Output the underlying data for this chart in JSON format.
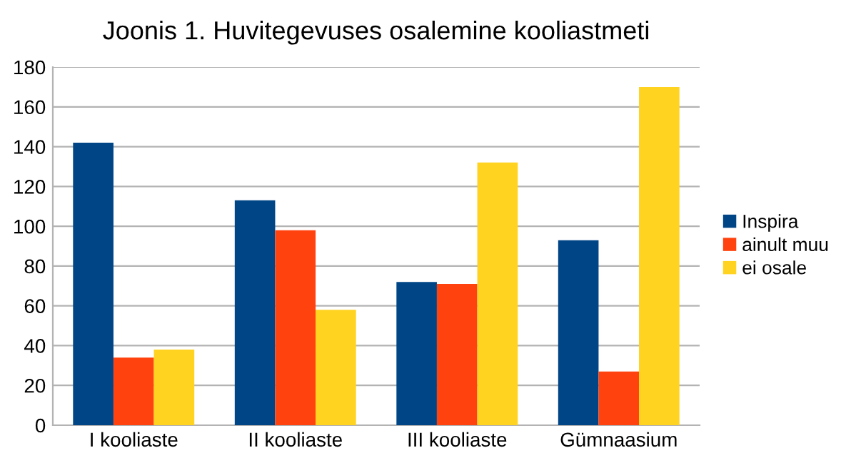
{
  "chart_data": {
    "type": "bar",
    "title": "Joonis 1. Huvitegevuses osalemine kooliastmeti",
    "categories": [
      "I kooliaste",
      "II kooliaste",
      "III kooliaste",
      "Gümnaasium"
    ],
    "series": [
      {
        "name": "Inspira",
        "color": "#004586",
        "values": [
          142,
          113,
          72,
          93
        ]
      },
      {
        "name": "ainult muu",
        "color": "#ff420e",
        "values": [
          34,
          98,
          71,
          27
        ]
      },
      {
        "name": "ei osale",
        "color": "#ffd320",
        "values": [
          38,
          58,
          132,
          170
        ]
      }
    ],
    "ylim": [
      0,
      180
    ],
    "yticks": [
      0,
      20,
      40,
      60,
      80,
      100,
      120,
      140,
      160,
      180
    ],
    "grid": "y",
    "legend": "right"
  }
}
